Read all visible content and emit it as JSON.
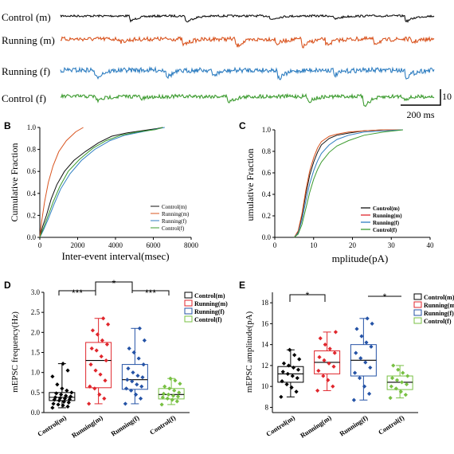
{
  "colors": {
    "control_m": "#111111",
    "running_m": "#d9541f",
    "running_f": "#2f7ec1",
    "control_f": "#3c9b2f",
    "box_control_m": "#000000",
    "box_running_m": "#e0262c",
    "box_running_f": "#2553a6",
    "box_control_f": "#78c043"
  },
  "panel_a": {
    "traces": [
      {
        "label": "Control (m)",
        "color_key": "control_m"
      },
      {
        "label": "Running (m)",
        "color_key": "running_m"
      },
      {
        "label": "Running (f)",
        "color_key": "running_f"
      },
      {
        "label": "Control (f)",
        "color_key": "control_f"
      }
    ],
    "scalebar": {
      "time_label": "200 ms",
      "amp_label": "10"
    }
  },
  "panel_b": {
    "letter": "B",
    "legend": [
      "Control(m)",
      "Running(m)",
      "Running(f)",
      "Control(f)"
    ]
  },
  "panel_c": {
    "letter": "C",
    "legend": [
      "Control(m)",
      "Running(m)",
      "Running(f)",
      "Control(f)"
    ]
  },
  "panel_d": {
    "letter": "D",
    "legend": [
      "Control(m)",
      "Running(m)",
      "Running(f)",
      "Control(f)"
    ],
    "significance": [
      "***",
      "*",
      "***"
    ]
  },
  "panel_e": {
    "letter": "E",
    "legend": [
      "Control(m)",
      "Running(m)",
      "Running(f)",
      "Control(f)"
    ],
    "significance": [
      "*",
      "*"
    ]
  },
  "chart_data": [
    {
      "id": "B",
      "type": "line",
      "xlabel": "Inter-event interval(msec)",
      "ylabel": "Cumulative Fraction",
      "xlim": [
        0,
        8000
      ],
      "ylim": [
        0,
        1.0
      ],
      "xticks": [
        0,
        2000,
        4000,
        6000,
        8000
      ],
      "yticks": [
        0.0,
        0.2,
        0.4,
        0.6,
        0.8,
        1.0
      ],
      "series": [
        {
          "name": "Control(m)",
          "color_key": "control_m",
          "x": [
            0,
            150,
            350,
            600,
            900,
            1300,
            1800,
            2400,
            3100,
            3800,
            4600,
            5400,
            6200,
            6500
          ],
          "y": [
            0,
            0.1,
            0.2,
            0.35,
            0.48,
            0.6,
            0.7,
            0.78,
            0.86,
            0.92,
            0.95,
            0.97,
            0.99,
            1.0
          ]
        },
        {
          "name": "Running(m)",
          "color_key": "running_m",
          "x": [
            0,
            100,
            250,
            450,
            700,
            1000,
            1400,
            1900,
            2300
          ],
          "y": [
            0,
            0.15,
            0.32,
            0.5,
            0.65,
            0.78,
            0.88,
            0.96,
            1.0
          ]
        },
        {
          "name": "Running(f)",
          "color_key": "running_f",
          "x": [
            0,
            200,
            450,
            750,
            1100,
            1600,
            2200,
            2900,
            3700,
            4500,
            5400,
            6300,
            6600
          ],
          "y": [
            0,
            0.07,
            0.17,
            0.3,
            0.44,
            0.58,
            0.7,
            0.8,
            0.88,
            0.93,
            0.96,
            0.99,
            1.0
          ]
        },
        {
          "name": "Control(f)",
          "color_key": "control_f",
          "x": [
            0,
            180,
            400,
            700,
            1050,
            1500,
            2100,
            2800,
            3500,
            4300,
            5200,
            6100,
            6500
          ],
          "y": [
            0,
            0.08,
            0.18,
            0.32,
            0.46,
            0.6,
            0.71,
            0.81,
            0.88,
            0.93,
            0.96,
            0.98,
            1.0
          ]
        }
      ]
    },
    {
      "id": "C",
      "type": "line",
      "xlabel": "mplitude(pA)",
      "ylabel": "umulative Fraction",
      "xlim": [
        0,
        40
      ],
      "ylim": [
        0,
        1.0
      ],
      "xticks": [
        0,
        10,
        20,
        30,
        40
      ],
      "yticks": [
        0.0,
        0.2,
        0.4,
        0.6,
        0.8,
        1.0
      ],
      "series": [
        {
          "name": "Control(m)",
          "color_key": "control_m",
          "x": [
            5,
            6,
            7,
            8,
            9,
            10,
            11,
            12,
            14,
            16,
            19,
            23,
            28,
            33
          ],
          "y": [
            0,
            0.05,
            0.2,
            0.4,
            0.58,
            0.7,
            0.79,
            0.86,
            0.92,
            0.95,
            0.97,
            0.99,
            1.0,
            1.0
          ]
        },
        {
          "name": "Running(m)",
          "color_key": "running_m",
          "x": [
            5,
            6,
            7,
            8,
            9,
            10,
            11,
            12,
            14,
            16,
            19,
            23,
            28,
            33
          ],
          "y": [
            0,
            0.06,
            0.22,
            0.44,
            0.62,
            0.74,
            0.83,
            0.89,
            0.94,
            0.96,
            0.98,
            0.99,
            1.0,
            1.0
          ]
        },
        {
          "name": "Running(f)",
          "color_key": "running_f",
          "x": [
            5,
            6,
            7,
            8,
            9,
            10,
            11,
            12,
            14,
            16,
            19,
            23,
            28,
            33
          ],
          "y": [
            0,
            0.04,
            0.16,
            0.34,
            0.5,
            0.62,
            0.71,
            0.78,
            0.86,
            0.91,
            0.95,
            0.98,
            0.99,
            1.0
          ]
        },
        {
          "name": "Control(f)",
          "color_key": "control_f",
          "x": [
            5,
            6,
            7,
            8,
            9,
            10,
            11,
            12,
            14,
            16,
            19,
            23,
            28,
            33
          ],
          "y": [
            0,
            0.03,
            0.12,
            0.27,
            0.42,
            0.54,
            0.63,
            0.7,
            0.79,
            0.85,
            0.9,
            0.95,
            0.98,
            1.0
          ]
        }
      ]
    },
    {
      "id": "D",
      "type": "box",
      "ylabel": "mEPSC frequency(Hz)",
      "ylim": [
        0.0,
        3.0
      ],
      "yticks": [
        0.0,
        0.5,
        1.0,
        1.5,
        2.0,
        2.5,
        3.0
      ],
      "categories": [
        "Control(m)",
        "Running(m)",
        "Running(f)",
        "Control(f)"
      ],
      "groups": [
        {
          "color_key": "box_control_m",
          "q1": 0.3,
          "median": 0.38,
          "mean": 0.42,
          "q3": 0.5,
          "whisker_low": 0.12,
          "whisker_high": 1.22,
          "points": [
            0.12,
            0.15,
            0.18,
            0.2,
            0.22,
            0.25,
            0.27,
            0.3,
            0.32,
            0.33,
            0.35,
            0.36,
            0.38,
            0.4,
            0.42,
            0.45,
            0.48,
            0.5,
            0.55,
            0.6,
            0.7,
            0.9,
            1.05,
            1.22
          ]
        },
        {
          "color_key": "box_running_m",
          "q1": 0.62,
          "median": 1.3,
          "mean": 1.32,
          "q3": 1.75,
          "whisker_low": 0.22,
          "whisker_high": 2.35,
          "points": [
            0.22,
            0.35,
            0.45,
            0.6,
            0.65,
            0.8,
            0.95,
            1.05,
            1.2,
            1.3,
            1.4,
            1.55,
            1.6,
            1.7,
            1.8,
            1.95,
            2.05,
            2.2,
            2.35
          ]
        },
        {
          "color_key": "box_running_f",
          "q1": 0.58,
          "median": 0.82,
          "mean": 0.9,
          "q3": 1.2,
          "whisker_low": 0.22,
          "whisker_high": 2.1,
          "points": [
            0.22,
            0.35,
            0.45,
            0.55,
            0.6,
            0.65,
            0.7,
            0.78,
            0.82,
            0.88,
            0.92,
            1.0,
            1.1,
            1.2,
            1.35,
            1.5,
            1.6,
            1.8,
            2.1
          ]
        },
        {
          "color_key": "box_control_f",
          "q1": 0.34,
          "median": 0.45,
          "mean": 0.44,
          "q3": 0.6,
          "whisker_low": 0.2,
          "whisker_high": 0.85,
          "points": [
            0.2,
            0.28,
            0.32,
            0.35,
            0.38,
            0.4,
            0.42,
            0.45,
            0.47,
            0.5,
            0.55,
            0.6,
            0.65,
            0.72,
            0.8,
            0.85
          ]
        }
      ]
    },
    {
      "id": "E",
      "type": "box",
      "ylabel": "mEPSC amplitude(pA)",
      "ylim": [
        7.5,
        19.0
      ],
      "yticks": [
        8,
        10,
        12,
        14,
        16,
        18
      ],
      "categories": [
        "Control(m)",
        "Running(m)",
        "Running(f)",
        "Control(f)"
      ],
      "groups": [
        {
          "color_key": "box_control_m",
          "q1": 10.4,
          "median": 11.2,
          "mean": 11.2,
          "q3": 11.9,
          "whisker_low": 9.0,
          "whisker_high": 13.5,
          "points": [
            9.0,
            9.5,
            9.9,
            10.2,
            10.5,
            10.8,
            11.0,
            11.2,
            11.4,
            11.6,
            11.8,
            12.0,
            12.2,
            12.6,
            13.0,
            13.5
          ]
        },
        {
          "color_key": "box_running_m",
          "q1": 11.2,
          "median": 12.3,
          "mean": 12.3,
          "q3": 13.4,
          "whisker_low": 9.6,
          "whisker_high": 15.2,
          "points": [
            9.6,
            10.0,
            10.6,
            11.0,
            11.5,
            11.9,
            12.2,
            12.5,
            12.8,
            13.2,
            13.6,
            14.0,
            14.6,
            15.2
          ]
        },
        {
          "color_key": "box_running_f",
          "q1": 11.0,
          "median": 12.5,
          "mean": 12.5,
          "q3": 14.0,
          "whisker_low": 8.7,
          "whisker_high": 16.5,
          "points": [
            8.7,
            9.3,
            10.0,
            10.8,
            11.3,
            11.8,
            12.3,
            12.7,
            13.2,
            13.8,
            14.2,
            14.8,
            15.5,
            16.0,
            16.5
          ]
        },
        {
          "color_key": "box_control_f",
          "q1": 9.7,
          "median": 10.4,
          "mean": 10.4,
          "q3": 11.0,
          "whisker_low": 8.9,
          "whisker_high": 12.0,
          "points": [
            8.9,
            9.2,
            9.5,
            9.8,
            10.0,
            10.2,
            10.4,
            10.6,
            10.8,
            11.0,
            11.3,
            11.6,
            12.0
          ]
        }
      ]
    }
  ]
}
